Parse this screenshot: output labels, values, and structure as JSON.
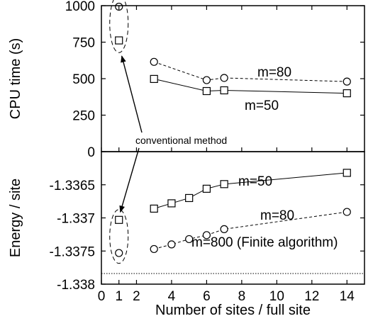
{
  "chart_data": [
    {
      "type": "line",
      "title": "",
      "xlabel": "",
      "ylabel": "CPU time (s)",
      "xlim": [
        0,
        15
      ],
      "ylim": [
        0,
        1000
      ],
      "yticks": [
        0,
        250,
        500,
        750,
        1000
      ],
      "ytick_labels": [
        "0",
        "250",
        "500",
        "750",
        "1000"
      ],
      "series": [
        {
          "name": "m=80",
          "marker": "circle",
          "line": "dashed",
          "x": [
            3,
            6,
            7,
            14
          ],
          "y": [
            615,
            490,
            505,
            480
          ]
        },
        {
          "name": "m=50",
          "marker": "square",
          "line": "solid",
          "x": [
            3,
            6,
            7,
            14
          ],
          "y": [
            498,
            415,
            420,
            400
          ]
        }
      ],
      "conventional": {
        "x": 1,
        "m80": 993,
        "m50": 762
      },
      "annotation": "conventional method"
    },
    {
      "type": "line",
      "title": "",
      "xlabel": "Number of sites / full site",
      "ylabel": "Energy / site",
      "xlim": [
        0,
        15
      ],
      "ylim": [
        -1.338,
        -1.336
      ],
      "xticks": [
        0,
        1,
        2,
        4,
        6,
        8,
        10,
        12,
        14
      ],
      "xtick_labels": [
        "0",
        "1",
        "2",
        "4",
        "6",
        "8",
        "10",
        "12",
        "14"
      ],
      "yticks": [
        -1.3365,
        -1.337,
        -1.3375,
        -1.338
      ],
      "ytick_labels": [
        "-1.3365",
        "-1.337",
        "-1.3375",
        "-1.338"
      ],
      "series": [
        {
          "name": "m=50",
          "marker": "square",
          "line": "solid",
          "x": [
            3,
            4,
            5,
            6,
            7,
            14
          ],
          "y": [
            -1.33686,
            -1.33678,
            -1.3367,
            -1.33656,
            -1.33649,
            -1.33632
          ]
        },
        {
          "name": "m=80",
          "marker": "circle",
          "line": "dashed",
          "x": [
            3,
            4,
            5,
            6,
            7,
            14
          ],
          "y": [
            -1.33747,
            -1.3374,
            -1.33732,
            -1.33726,
            -1.33717,
            -1.33691
          ]
        },
        {
          "name": "m=800 (Finite algorithm)",
          "marker": "none",
          "line": "dotted",
          "x": [
            0,
            15
          ],
          "y": [
            -1.33784,
            -1.33784
          ]
        }
      ],
      "conventional": {
        "x": 1,
        "m50": -1.33703,
        "m80": -1.33753
      }
    }
  ]
}
